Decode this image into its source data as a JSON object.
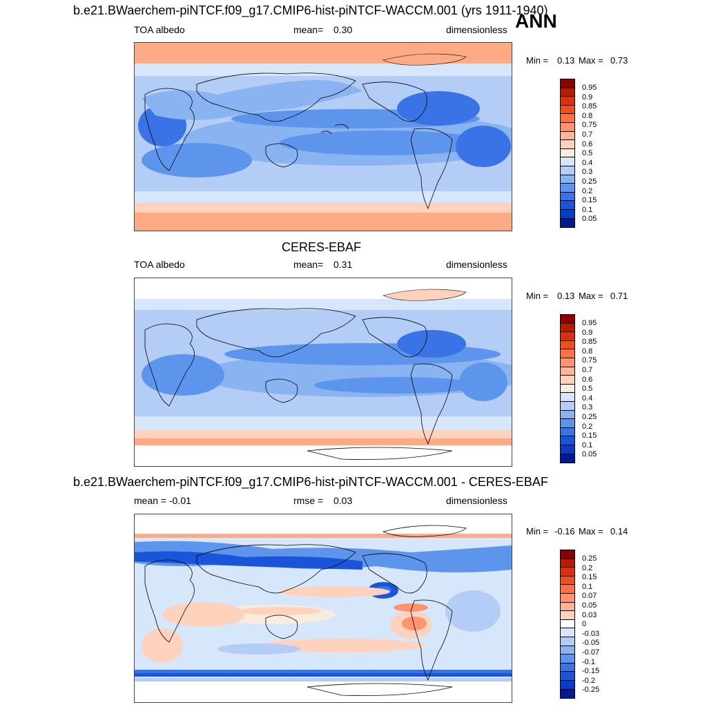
{
  "panels": [
    {
      "title": "b.e21.BWaerchem-piNTCF.f09_g17.CMIP6-hist-piNTCF-WACCM.001 (yrs 1911-1940)",
      "left": "TOA albedo",
      "mid_label": "mean=",
      "mid_value": "0.30",
      "right": "dimensionless",
      "min_label": "Min =",
      "min_value": "0.13",
      "max_label": "Max =",
      "max_value": "0.73",
      "kind": "abs",
      "colorbar": {
        "labels": [
          "0.95",
          "0.9",
          "0.85",
          "0.8",
          "0.75",
          "0.7",
          "0.6",
          "0.5",
          "0.4",
          "0.3",
          "0.25",
          "0.2",
          "0.15",
          "0.1",
          "0.05"
        ],
        "colors": [
          "#8b0000",
          "#b51d00",
          "#d83010",
          "#ef4f1f",
          "#fb7143",
          "#fd9370",
          "#feb595",
          "#ffd2bd",
          "#f8ecdf",
          "#d6e6fb",
          "#b4cdf7",
          "#8ab3f2",
          "#5e95ec",
          "#3a73e6",
          "#1a55d9",
          "#0a3bc0",
          "#001b8f"
        ]
      }
    },
    {
      "title": "CERES-EBAF",
      "left": "TOA albedo",
      "mid_label": "mean=",
      "mid_value": "0.31",
      "right": "dimensionless",
      "min_label": "Min =",
      "min_value": "0.13",
      "max_label": "Max =",
      "max_value": "0.71",
      "kind": "abs",
      "colorbar": {
        "labels": [
          "0.95",
          "0.9",
          "0.85",
          "0.8",
          "0.75",
          "0.7",
          "0.6",
          "0.5",
          "0.4",
          "0.3",
          "0.25",
          "0.2",
          "0.15",
          "0.1",
          "0.05"
        ],
        "colors": [
          "#8b0000",
          "#b51d00",
          "#d83010",
          "#ef4f1f",
          "#fb7143",
          "#fd9370",
          "#feb595",
          "#ffd2bd",
          "#f8ecdf",
          "#d6e6fb",
          "#b4cdf7",
          "#8ab3f2",
          "#5e95ec",
          "#3a73e6",
          "#1a55d9",
          "#0a3bc0",
          "#001b8f"
        ]
      }
    },
    {
      "title": "b.e21.BWaerchem-piNTCF.f09_g17.CMIP6-hist-piNTCF-WACCM.001 - CERES-EBAF",
      "left": "mean =  -0.01",
      "mid_label": "rmse =",
      "mid_value": "0.03",
      "right": "dimensionless",
      "min_label": "Min =",
      "min_value": "-0.16",
      "max_label": "Max =",
      "max_value": "0.14",
      "kind": "diff",
      "colorbar": {
        "labels": [
          "0.25",
          "0.2",
          "0.15",
          "0.1",
          "0.07",
          "0.05",
          "0.03",
          "0",
          "-0.03",
          "-0.05",
          "-0.07",
          "-0.1",
          "-0.15",
          "-0.2",
          "-0.25"
        ],
        "colors": [
          "#8b0000",
          "#b51d00",
          "#d83010",
          "#ef4f1f",
          "#fb7143",
          "#fd9370",
          "#feb595",
          "#ffd2bd",
          "#ffffff",
          "#d6e6fb",
          "#b4cdf7",
          "#8ab3f2",
          "#5e95ec",
          "#3a73e6",
          "#1a55d9",
          "#0a3bc0",
          "#001b8f"
        ]
      }
    }
  ],
  "season": "ANN"
}
